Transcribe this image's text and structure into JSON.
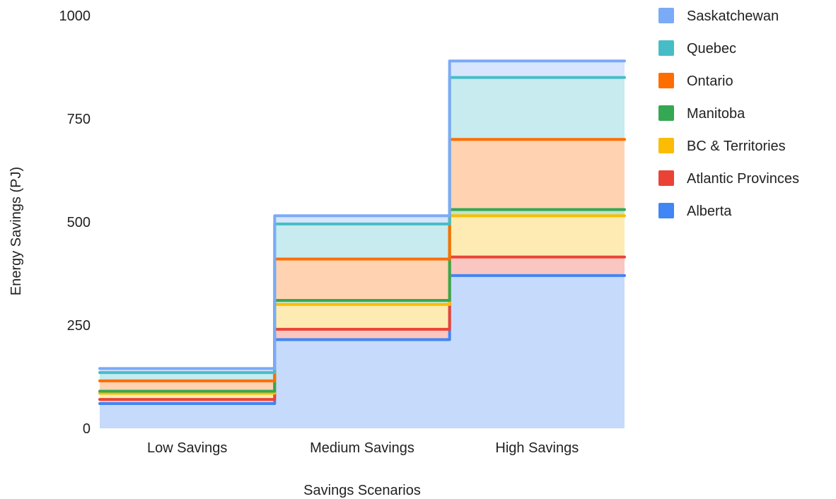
{
  "chart_data": {
    "type": "area",
    "subtype": "stacked-stepped",
    "categories": [
      "Low Savings",
      "Medium Savings",
      "High Savings"
    ],
    "xlabel": "Savings Scenarios",
    "ylabel": "Energy Savings (PJ)",
    "ylim": [
      0,
      1000
    ],
    "yticks": [
      0,
      250,
      500,
      750,
      1000
    ],
    "grid": false,
    "legend_position": "right",
    "series": [
      {
        "name": "Alberta",
        "color": "#4285f4",
        "values": [
          60,
          215,
          370
        ]
      },
      {
        "name": "Atlantic Provinces",
        "color": "#ea4335",
        "values": [
          10,
          25,
          45
        ]
      },
      {
        "name": "BC & Territories",
        "color": "#fbbc04",
        "values": [
          15,
          60,
          100
        ]
      },
      {
        "name": "Manitoba",
        "color": "#34a853",
        "values": [
          5,
          10,
          15
        ]
      },
      {
        "name": "Ontario",
        "color": "#ff6d01",
        "values": [
          25,
          100,
          170
        ]
      },
      {
        "name": "Quebec",
        "color": "#46bdc6",
        "values": [
          20,
          85,
          150
        ]
      },
      {
        "name": "Saskatchewan",
        "color": "#7baaf7",
        "values": [
          10,
          20,
          40
        ]
      }
    ]
  }
}
